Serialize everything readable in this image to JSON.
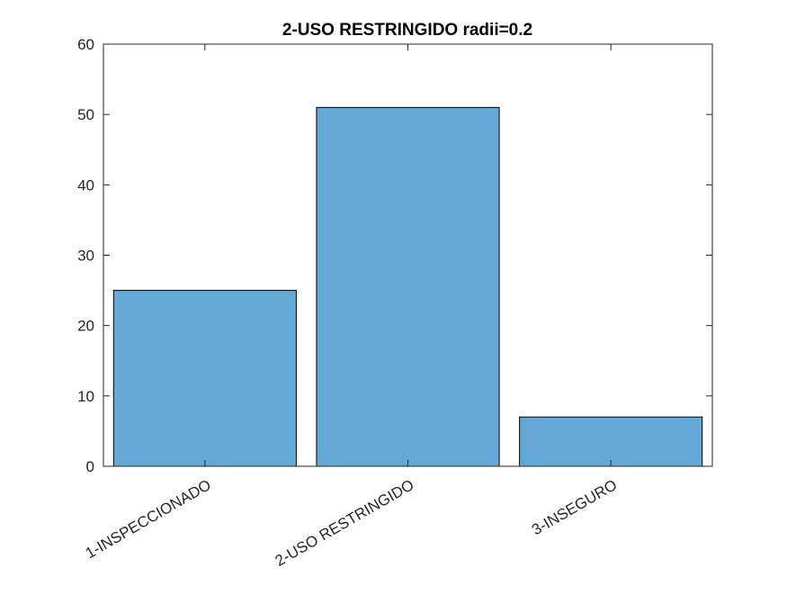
{
  "chart_data": {
    "type": "bar",
    "title": "2-USO RESTRINGIDO radii=0.2",
    "xlabel": "",
    "ylabel": "",
    "categories": [
      "1-INSPECCIONADO",
      "2-USO RESTRINGIDO",
      "3-INSEGURO"
    ],
    "values": [
      25,
      51,
      7
    ],
    "ylim": [
      0,
      60
    ],
    "yticks": [
      0,
      10,
      20,
      30,
      40,
      50,
      60
    ],
    "ytick_labels": [
      "0",
      "10",
      "20",
      "30",
      "40",
      "50",
      "60"
    ],
    "bar_color": "#64a8d6",
    "bar_edge_color": "#000000",
    "axis_color": "#262626",
    "grid": false,
    "legend": "none"
  }
}
